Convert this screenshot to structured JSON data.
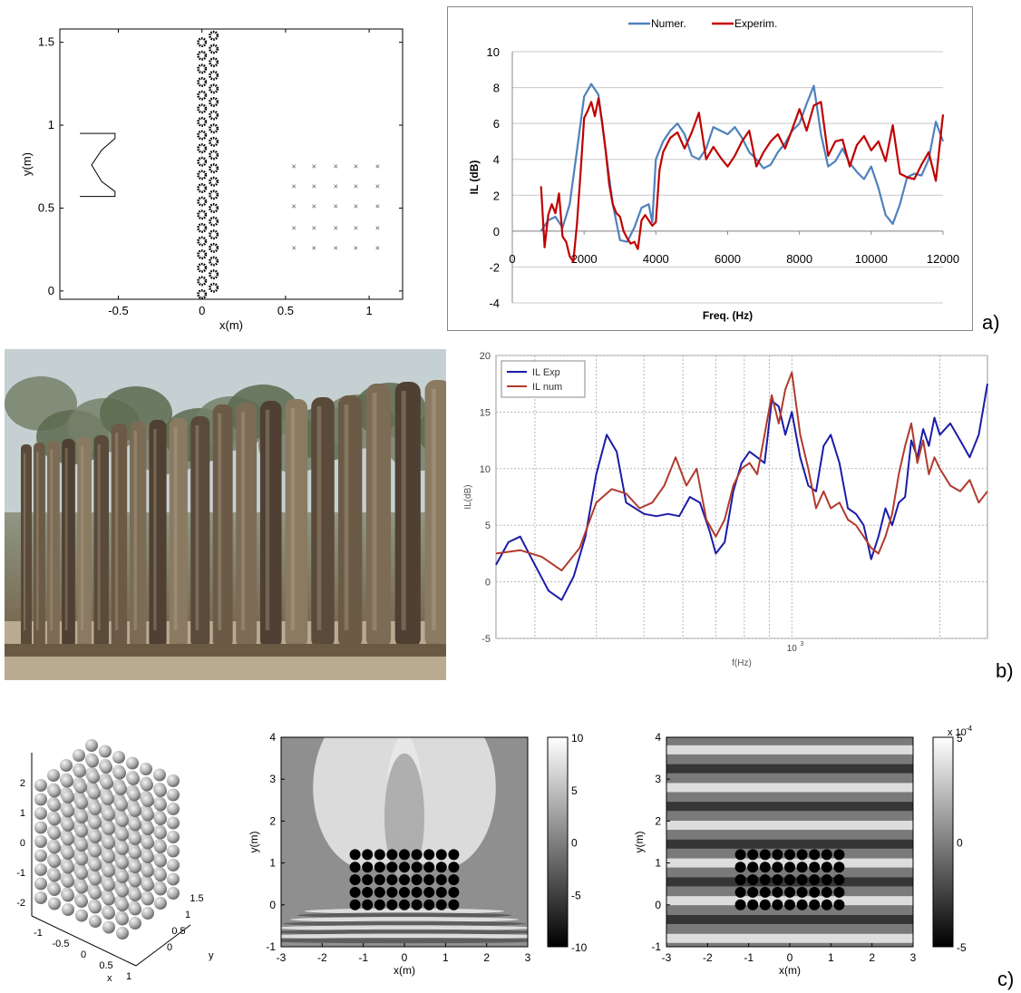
{
  "panel_labels": {
    "a": "a)",
    "b": "b)",
    "c": "c)"
  },
  "chart_data": [
    {
      "id": "a-left-layout",
      "type": "scatter",
      "xlabel": "x(m)",
      "ylabel": "y(m)",
      "xlim": [
        -0.85,
        1.2
      ],
      "ylim": [
        -0.05,
        1.58
      ],
      "x_ticks": [
        "-0.5",
        "0",
        "0.5",
        "1"
      ],
      "x_tick_values": [
        -0.5,
        0,
        0.5,
        1
      ],
      "y_ticks": [
        "0",
        "0.5",
        "1",
        "1.5"
      ],
      "y_tick_values": [
        0,
        0.5,
        1,
        1.5
      ],
      "receivers": {
        "x": [
          0.55,
          0.67,
          0.8,
          0.92,
          1.05
        ],
        "y": [
          0.26,
          0.38,
          0.51,
          0.63,
          0.75
        ]
      },
      "scatterer_columns_x": [
        0.0,
        0.07
      ],
      "scatterer_y_range": [
        -0.02,
        1.56
      ],
      "source_outline": [
        [
          -0.73,
          0.95
        ],
        [
          -0.52,
          0.95
        ],
        [
          -0.52,
          0.92
        ],
        [
          -0.6,
          0.85
        ],
        [
          -0.66,
          0.76
        ],
        [
          -0.6,
          0.66
        ],
        [
          -0.52,
          0.6
        ],
        [
          -0.52,
          0.57
        ],
        [
          -0.73,
          0.57
        ]
      ]
    },
    {
      "id": "a-right-il",
      "type": "line",
      "xlabel": "Freq. (Hz)",
      "ylabel": "IL (dB)",
      "xlim": [
        0,
        12000
      ],
      "ylim": [
        -4,
        10
      ],
      "x_ticks": [
        "0",
        "2000",
        "4000",
        "6000",
        "8000",
        "10000",
        "12000"
      ],
      "y_ticks": [
        "-4",
        "-2",
        "0",
        "2",
        "4",
        "6",
        "8",
        "10"
      ],
      "legend": "top-center",
      "series": [
        {
          "name": "Numer.",
          "color": "#4f81bd",
          "x": [
            800,
            1000,
            1200,
            1400,
            1600,
            1800,
            2000,
            2200,
            2400,
            2600,
            2800,
            3000,
            3200,
            3400,
            3600,
            3800,
            3900,
            4000,
            4200,
            4400,
            4600,
            4800,
            5000,
            5200,
            5400,
            5600,
            5800,
            6000,
            6200,
            6400,
            6600,
            6800,
            7000,
            7200,
            7400,
            7600,
            7800,
            8000,
            8200,
            8400,
            8600,
            8800,
            9000,
            9200,
            9400,
            9600,
            9800,
            10000,
            10200,
            10400,
            10600,
            10800,
            11000,
            11200,
            11400,
            11600,
            11800,
            12000
          ],
          "values": [
            0,
            0.6,
            0.8,
            0.2,
            1.5,
            4.5,
            7.5,
            8.2,
            7.6,
            4.5,
            1.5,
            -0.5,
            -0.6,
            0.2,
            1.3,
            1.5,
            0.5,
            4.0,
            5.0,
            5.6,
            6.0,
            5.4,
            4.2,
            4.0,
            4.6,
            5.8,
            5.6,
            5.4,
            5.8,
            5.2,
            4.4,
            4.0,
            3.5,
            3.7,
            4.4,
            4.9,
            5.6,
            6.0,
            7.1,
            8.1,
            5.4,
            3.6,
            3.9,
            4.6,
            3.8,
            3.3,
            2.9,
            3.6,
            2.4,
            0.9,
            0.4,
            1.5,
            3.0,
            3.2,
            3.1,
            4.0,
            6.1,
            5.0
          ]
        },
        {
          "name": "Experim.",
          "color": "#c00000",
          "x": [
            800,
            900,
            1000,
            1100,
            1200,
            1300,
            1400,
            1500,
            1600,
            1700,
            1800,
            1900,
            2000,
            2100,
            2200,
            2300,
            2400,
            2500,
            2600,
            2700,
            2800,
            2900,
            3000,
            3100,
            3200,
            3300,
            3400,
            3500,
            3600,
            3700,
            3800,
            3900,
            4000,
            4100,
            4200,
            4400,
            4600,
            4800,
            5000,
            5200,
            5400,
            5600,
            5800,
            6000,
            6200,
            6400,
            6600,
            6800,
            7000,
            7200,
            7400,
            7600,
            7800,
            8000,
            8200,
            8400,
            8600,
            8800,
            9000,
            9200,
            9400,
            9600,
            9800,
            10000,
            10200,
            10400,
            10600,
            10800,
            11000,
            11200,
            11400,
            11600,
            11800,
            12000
          ],
          "values": [
            2.5,
            -0.9,
            0.9,
            1.5,
            1.0,
            2.1,
            -0.3,
            -0.6,
            -1.4,
            -1.7,
            0.4,
            3.2,
            6.3,
            6.7,
            7.2,
            6.4,
            7.4,
            6.1,
            4.5,
            2.6,
            1.5,
            1.0,
            0.8,
            0.0,
            -0.4,
            -0.7,
            -0.6,
            -1.0,
            0.6,
            0.9,
            0.6,
            0.3,
            0.5,
            3.4,
            4.4,
            5.2,
            5.5,
            4.6,
            5.5,
            6.6,
            4.0,
            4.7,
            4.1,
            3.6,
            4.2,
            5.0,
            5.6,
            3.6,
            4.4,
            5.0,
            5.4,
            4.6,
            5.7,
            6.8,
            5.6,
            7.0,
            7.2,
            4.2,
            5.0,
            5.1,
            3.6,
            4.8,
            5.3,
            4.5,
            5.0,
            3.9,
            5.9,
            3.2,
            3.0,
            2.9,
            3.7,
            4.4,
            2.8,
            6.5
          ]
        }
      ]
    },
    {
      "id": "b-right-il",
      "type": "line",
      "xlabel": "f(Hz)",
      "ylabel": "IL(dB)",
      "xscale": "log",
      "xlim": [
        250,
        2500
      ],
      "ylim": [
        -5,
        20
      ],
      "x_ticks": [
        "10"
      ],
      "x_tick_sup": [
        "3"
      ],
      "y_ticks": [
        "-5",
        "0",
        "5",
        "10",
        "15",
        "20"
      ],
      "legend": "top-left",
      "grid": true,
      "series": [
        {
          "name": "IL Exp",
          "color": "#1c1ca8",
          "x": [
            250,
            265,
            280,
            300,
            320,
            340,
            360,
            380,
            400,
            420,
            440,
            460,
            480,
            500,
            530,
            560,
            590,
            620,
            650,
            680,
            700,
            730,
            760,
            790,
            820,
            850,
            880,
            910,
            940,
            970,
            1000,
            1040,
            1080,
            1120,
            1160,
            1200,
            1250,
            1300,
            1350,
            1400,
            1450,
            1500,
            1550,
            1600,
            1650,
            1700,
            1750,
            1800,
            1850,
            1900,
            1950,
            2000,
            2100,
            2200,
            2300,
            2400,
            2500
          ],
          "values": [
            1.5,
            3.5,
            4.0,
            1.5,
            -0.8,
            -1.6,
            0.5,
            4.0,
            9.5,
            13.0,
            11.5,
            7.0,
            6.5,
            6.0,
            5.8,
            6.0,
            5.8,
            7.5,
            7.0,
            4.5,
            2.5,
            3.5,
            8.0,
            10.5,
            11.5,
            11.0,
            10.5,
            16.0,
            15.5,
            13.0,
            15.0,
            11.0,
            8.5,
            8.0,
            12.0,
            13.0,
            10.5,
            6.5,
            6.0,
            5.0,
            2.0,
            4.0,
            6.5,
            5.0,
            7.0,
            7.5,
            12.5,
            11.0,
            13.5,
            12.0,
            14.5,
            13.0,
            14.0,
            12.5,
            11.0,
            13.0,
            17.5
          ]
        },
        {
          "name": "IL num",
          "color": "#b23a2e",
          "x": [
            250,
            280,
            310,
            340,
            370,
            400,
            430,
            460,
            490,
            520,
            550,
            580,
            610,
            640,
            670,
            700,
            730,
            760,
            790,
            820,
            850,
            880,
            910,
            940,
            970,
            1000,
            1040,
            1080,
            1120,
            1160,
            1200,
            1250,
            1300,
            1350,
            1400,
            1450,
            1500,
            1550,
            1600,
            1650,
            1700,
            1750,
            1800,
            1850,
            1900,
            1950,
            2000,
            2100,
            2200,
            2300,
            2400,
            2500
          ],
          "values": [
            2.5,
            2.8,
            2.2,
            1.0,
            3.0,
            7.0,
            8.2,
            7.8,
            6.5,
            7.0,
            8.5,
            11.0,
            8.5,
            10.0,
            5.5,
            4.0,
            5.5,
            8.5,
            10.0,
            10.5,
            9.5,
            13.0,
            16.5,
            14.0,
            17.0,
            18.5,
            13.0,
            10.0,
            6.5,
            8.0,
            6.5,
            7.0,
            5.5,
            5.0,
            4.0,
            3.0,
            2.5,
            4.0,
            6.0,
            9.5,
            12.0,
            14.0,
            10.5,
            12.5,
            9.5,
            11.0,
            10.0,
            8.5,
            8.0,
            9.0,
            7.0,
            8.0
          ]
        }
      ]
    },
    {
      "id": "c-left-3d",
      "type": "scatter",
      "xlabel": "x",
      "ylabel": "y",
      "x_ticks": [
        "-1",
        "-0.5",
        "0",
        "0.5",
        "1"
      ],
      "y_ticks": [
        "0",
        "0.5",
        "1",
        "1.5"
      ],
      "z_ticks": [
        "-2",
        "-1",
        "0",
        "1",
        "2"
      ]
    },
    {
      "id": "c-mid-field",
      "type": "heatmap",
      "xlabel": "x(m)",
      "ylabel": "y(m)",
      "xlim": [
        -3,
        3
      ],
      "ylim": [
        -1,
        4
      ],
      "x_ticks": [
        "-3",
        "-2",
        "-1",
        "0",
        "1",
        "2",
        "3"
      ],
      "y_ticks": [
        "-1",
        "0",
        "1",
        "2",
        "3",
        "4"
      ],
      "colorbar_ticks": [
        "10",
        "5",
        "0",
        "-5",
        "-10"
      ],
      "colorbar_range": [
        -10,
        10
      ]
    },
    {
      "id": "c-right-field",
      "type": "heatmap",
      "xlabel": "x(m)",
      "ylabel": "y(m)",
      "xlim": [
        -3,
        3
      ],
      "ylim": [
        -1,
        4
      ],
      "x_ticks": [
        "-3",
        "-2",
        "-1",
        "0",
        "1",
        "2",
        "3"
      ],
      "y_ticks": [
        "-1",
        "0",
        "1",
        "2",
        "3",
        "4"
      ],
      "colorbar_ticks": [
        "5",
        "0",
        "-5"
      ],
      "colorbar_range": [
        -5,
        5
      ],
      "colorbar_exponent": "x 10",
      "colorbar_exponent_sup": "-4"
    }
  ]
}
